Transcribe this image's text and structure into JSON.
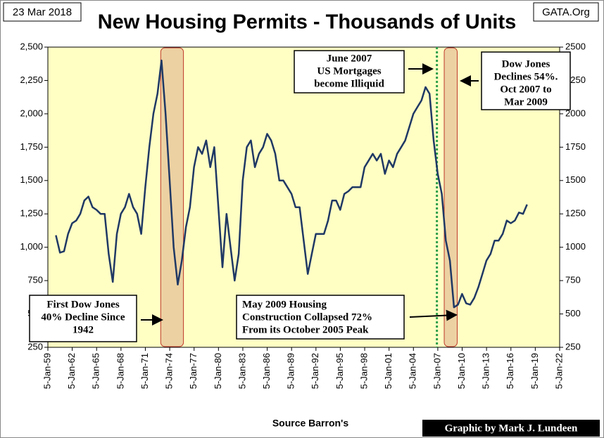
{
  "chart_data": {
    "type": "line",
    "title": "New Housing Permits - Thousands of Units",
    "date_note": "23 Mar 2018",
    "site": "GATA.Org",
    "source": "Source Barron's",
    "credit": "Graphic by Mark J. Lundeen",
    "annotations": [
      [
        "June 2007",
        "US Mortgages",
        "become Illiquid"
      ],
      [
        "Dow Jones",
        "Declines  54%.",
        "Oct 2007 to",
        "Mar 2009"
      ],
      [
        "First Dow Jones",
        "40% Decline  Since",
        "1942"
      ],
      [
        "May 2009 Housing",
        "Construction Collapsed 72%",
        "From its October 2005 Peak"
      ]
    ],
    "shaded_ranges": [
      [
        1972.9,
        1975.7
      ],
      [
        2007.8,
        2009.4
      ]
    ],
    "vline": 2006.9,
    "xlim": [
      1959.01,
      2022.01
    ],
    "xticks": [
      {
        "value": 1959.01,
        "label": "5-Jan-59"
      },
      {
        "value": 1962.01,
        "label": "5-Jan-62"
      },
      {
        "value": 1965.01,
        "label": "5-Jan-65"
      },
      {
        "value": 1968.01,
        "label": "5-Jan-68"
      },
      {
        "value": 1971.01,
        "label": "5-Jan-71"
      },
      {
        "value": 1974.01,
        "label": "5-Jan-74"
      },
      {
        "value": 1977.01,
        "label": "5-Jan-77"
      },
      {
        "value": 1980.01,
        "label": "5-Jan-80"
      },
      {
        "value": 1983.01,
        "label": "5-Jan-83"
      },
      {
        "value": 1986.01,
        "label": "5-Jan-86"
      },
      {
        "value": 1989.01,
        "label": "5-Jan-89"
      },
      {
        "value": 1992.01,
        "label": "5-Jan-92"
      },
      {
        "value": 1995.01,
        "label": "5-Jan-95"
      },
      {
        "value": 1998.01,
        "label": "5-Jan-98"
      },
      {
        "value": 2001.01,
        "label": "5-Jan-01"
      },
      {
        "value": 2004.01,
        "label": "5-Jan-04"
      },
      {
        "value": 2007.01,
        "label": "5-Jan-07"
      },
      {
        "value": 2010.01,
        "label": "5-Jan-10"
      },
      {
        "value": 2013.01,
        "label": "5-Jan-13"
      },
      {
        "value": 2016.01,
        "label": "5-Jan-16"
      },
      {
        "value": 2019.01,
        "label": "5-Jan-19"
      },
      {
        "value": 2022.01,
        "label": "5-Jan-22"
      }
    ],
    "ylim": [
      250,
      2500
    ],
    "yticks": [
      250,
      500,
      750,
      {
        "value": 1000,
        "label": "1,000"
      },
      {
        "value": 1250,
        "label": "1,250"
      },
      {
        "value": 1500,
        "label": "1,500"
      },
      {
        "value": 1750,
        "label": "1,750"
      },
      {
        "value": 2000,
        "label": "2,000"
      },
      {
        "value": 2250,
        "label": "2,250"
      },
      {
        "value": 2500,
        "label": "2,500"
      }
    ],
    "y2lim": [
      250,
      2500
    ],
    "y2ticks": [
      250,
      500,
      750,
      1000,
      1250,
      1500,
      1750,
      2000,
      2250,
      2500
    ],
    "series": [
      {
        "name": "New Housing Permits",
        "color": "#1f3864",
        "x": [
          1960.0,
          1960.5,
          1961.0,
          1961.5,
          1962.0,
          1962.5,
          1963.0,
          1963.5,
          1964.0,
          1964.5,
          1965.0,
          1965.5,
          1966.0,
          1966.5,
          1967.0,
          1967.5,
          1968.0,
          1968.5,
          1969.0,
          1969.5,
          1970.0,
          1970.5,
          1971.0,
          1971.5,
          1972.0,
          1972.5,
          1973.0,
          1973.5,
          1974.0,
          1974.5,
          1975.0,
          1975.5,
          1976.0,
          1976.5,
          1977.0,
          1977.5,
          1978.0,
          1978.5,
          1979.0,
          1979.5,
          1980.0,
          1980.5,
          1981.0,
          1981.5,
          1982.0,
          1982.5,
          1983.0,
          1983.5,
          1984.0,
          1984.5,
          1985.0,
          1985.5,
          1986.0,
          1986.5,
          1987.0,
          1987.5,
          1988.0,
          1988.5,
          1989.0,
          1989.5,
          1990.0,
          1990.5,
          1991.0,
          1991.5,
          1992.0,
          1992.5,
          1993.0,
          1993.5,
          1994.0,
          1994.5,
          1995.0,
          1995.5,
          1996.0,
          1996.5,
          1997.0,
          1997.5,
          1998.0,
          1998.5,
          1999.0,
          1999.5,
          2000.0,
          2000.5,
          2001.0,
          2001.5,
          2002.0,
          2002.5,
          2003.0,
          2003.5,
          2004.0,
          2004.5,
          2005.0,
          2005.5,
          2006.0,
          2006.5,
          2007.0,
          2007.5,
          2008.0,
          2008.5,
          2009.0,
          2009.5,
          2010.0,
          2010.5,
          2011.0,
          2011.5,
          2012.0,
          2012.5,
          2013.0,
          2013.5,
          2014.0,
          2014.5,
          2015.0,
          2015.5,
          2016.0,
          2016.5,
          2017.0,
          2017.5,
          2018.0
        ],
        "values": [
          1090,
          960,
          970,
          1100,
          1180,
          1200,
          1250,
          1350,
          1380,
          1300,
          1280,
          1250,
          1250,
          950,
          740,
          1100,
          1250,
          1300,
          1400,
          1300,
          1250,
          1100,
          1450,
          1750,
          2000,
          2150,
          2400,
          2000,
          1500,
          1000,
          720,
          900,
          1150,
          1300,
          1600,
          1750,
          1700,
          1800,
          1600,
          1750,
          1300,
          850,
          1250,
          1000,
          750,
          950,
          1500,
          1750,
          1800,
          1600,
          1700,
          1750,
          1850,
          1800,
          1700,
          1500,
          1500,
          1450,
          1400,
          1300,
          1300,
          1050,
          800,
          950,
          1100,
          1100,
          1100,
          1200,
          1350,
          1350,
          1280,
          1400,
          1420,
          1450,
          1450,
          1450,
          1600,
          1650,
          1700,
          1650,
          1700,
          1550,
          1650,
          1600,
          1700,
          1750,
          1800,
          1900,
          2000,
          2050,
          2100,
          2200,
          2150,
          1800,
          1550,
          1400,
          1050,
          900,
          550,
          570,
          650,
          580,
          570,
          620,
          700,
          800,
          900,
          950,
          1050,
          1050,
          1100,
          1200,
          1180,
          1200,
          1260,
          1250,
          1320
        ]
      }
    ]
  }
}
